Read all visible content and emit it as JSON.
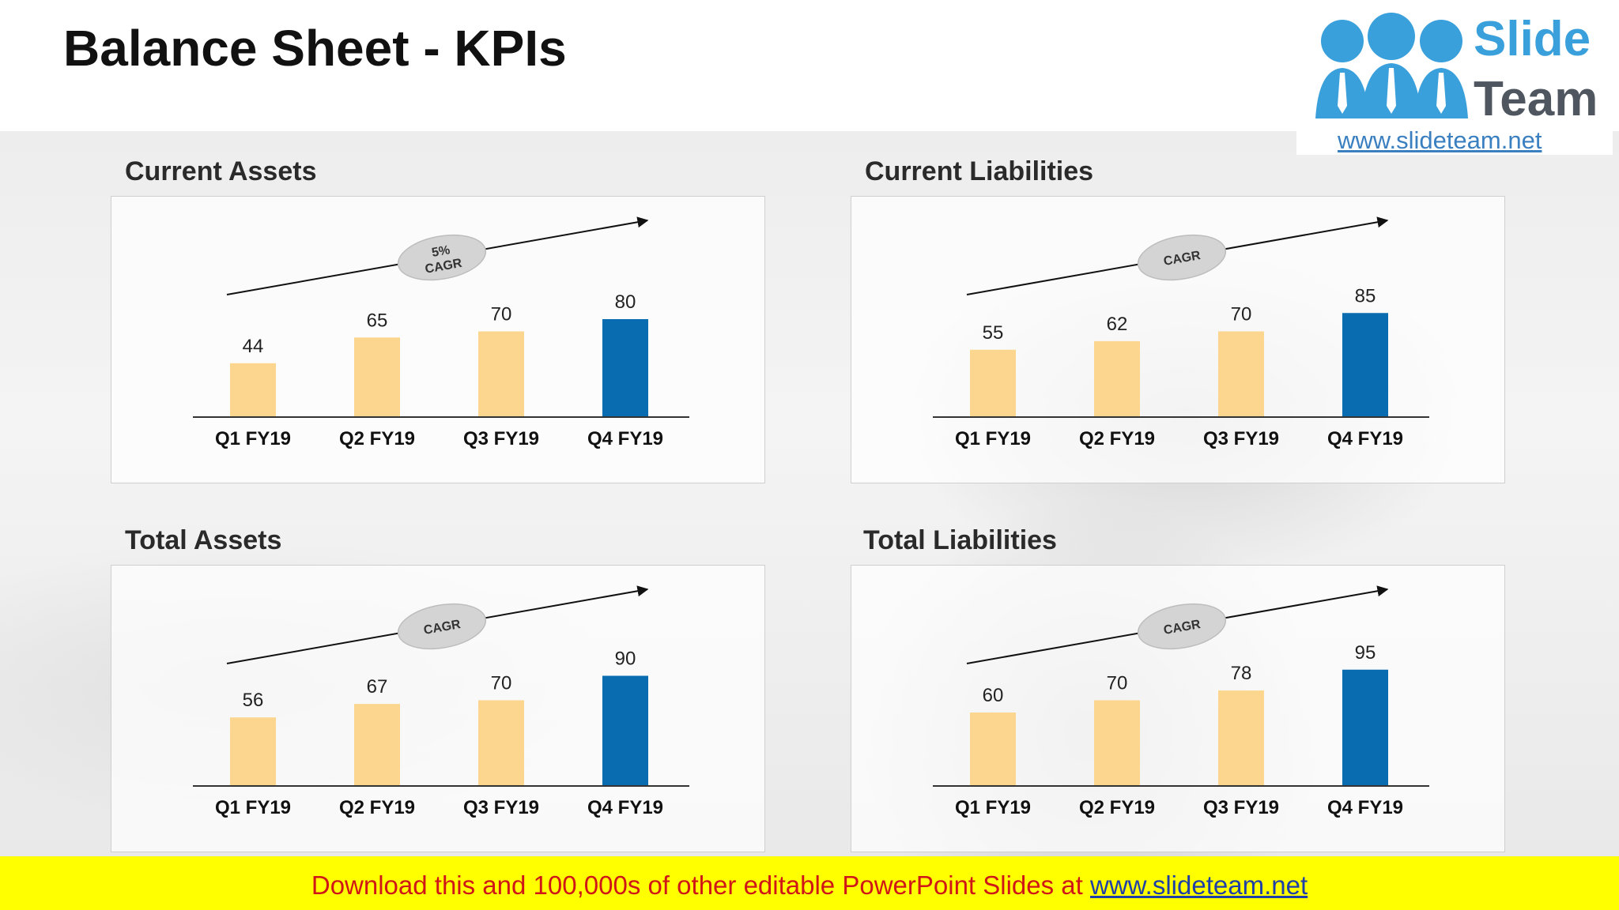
{
  "title": "Balance Sheet - KPIs",
  "logo": {
    "name_line1": "Slide",
    "name_line2": "Team",
    "url": "www.slideteam.net"
  },
  "footer": {
    "text": "Download this and 100,000s of other editable PowerPoint Slides at ",
    "link": "www.slideteam.net"
  },
  "colors": {
    "highlight_bar": "#0a6cb0",
    "base_bar": "#fcd68e",
    "footer_bg": "#ffff00",
    "footer_text": "#d01717"
  },
  "kpis": {
    "current_assets": {
      "title": "Current Assets",
      "badge": "5%\nCAGR"
    },
    "current_liabilities": {
      "title": "Current Liabilities",
      "badge": "CAGR"
    },
    "total_assets": {
      "title": "Total Assets",
      "badge": "CAGR"
    },
    "total_liabilities": {
      "title": "Total Liabilities",
      "badge": "CAGR"
    }
  },
  "chart_data": [
    {
      "type": "bar",
      "title": "Current Assets",
      "categories": [
        "Q1 FY19",
        "Q2 FY19",
        "Q3 FY19",
        "Q4 FY19"
      ],
      "values": [
        44,
        65,
        70,
        80
      ],
      "ylim": [
        0,
        100
      ],
      "highlight_index": 3,
      "grid": false,
      "annotation": "5% CAGR"
    },
    {
      "type": "bar",
      "title": "Current Liabilities",
      "categories": [
        "Q1 FY19",
        "Q2 FY19",
        "Q3 FY19",
        "Q4 FY19"
      ],
      "values": [
        55,
        62,
        70,
        85
      ],
      "ylim": [
        0,
        100
      ],
      "highlight_index": 3,
      "grid": false,
      "annotation": "CAGR"
    },
    {
      "type": "bar",
      "title": "Total Assets",
      "categories": [
        "Q1 FY19",
        "Q2 FY19",
        "Q3 FY19",
        "Q4 FY19"
      ],
      "values": [
        56,
        67,
        70,
        90
      ],
      "ylim": [
        0,
        100
      ],
      "highlight_index": 3,
      "grid": false,
      "annotation": "CAGR"
    },
    {
      "type": "bar",
      "title": "Total Liabilities",
      "categories": [
        "Q1 FY19",
        "Q2 FY19",
        "Q3 FY19",
        "Q4 FY19"
      ],
      "values": [
        60,
        70,
        78,
        95
      ],
      "ylim": [
        0,
        100
      ],
      "highlight_index": 3,
      "grid": false,
      "annotation": "CAGR"
    }
  ]
}
